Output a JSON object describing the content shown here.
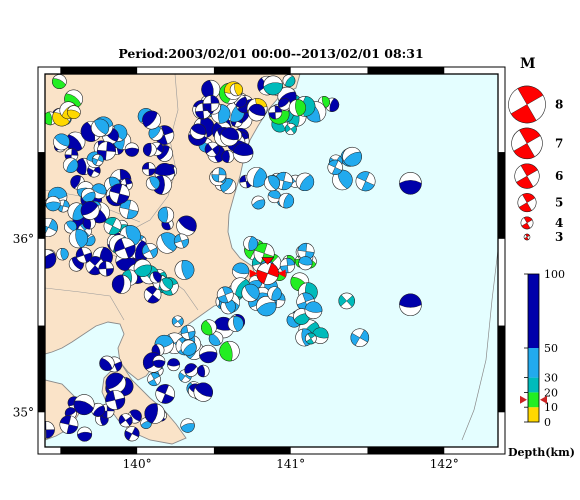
{
  "title": "Period:2003/02/01 00:00--2013/02/01 08:31",
  "map": {
    "lon_ticks": [
      {
        "value": 140,
        "label": "140°"
      },
      {
        "value": 141,
        "label": "141°"
      },
      {
        "value": 142,
        "label": "142°"
      }
    ],
    "lat_ticks": [
      {
        "value": 35,
        "label": "35°"
      },
      {
        "value": 36,
        "label": "36°"
      }
    ],
    "lon_range": [
      139.4,
      142.35
    ],
    "lat_range": [
      34.8,
      36.95
    ],
    "colors": {
      "land": "#fae3c8",
      "sea": "#e4feff",
      "coast": "#8a8a8a",
      "frame": "#000000"
    }
  },
  "magnitude_legend": {
    "title": "M",
    "items": [
      {
        "m": 8,
        "label": "8"
      },
      {
        "m": 7,
        "label": "7"
      },
      {
        "m": 6,
        "label": "6"
      },
      {
        "m": 5,
        "label": "5"
      },
      {
        "m": 4,
        "label": "4"
      },
      {
        "m": 3,
        "label": "3"
      }
    ],
    "color": "#ff0000"
  },
  "depth_scale": {
    "label": "Depth(km)",
    "ticks": [
      {
        "value": 0,
        "label": "0"
      },
      {
        "value": 10,
        "label": "10"
      },
      {
        "value": 20,
        "label": "20"
      },
      {
        "value": 30,
        "label": "30"
      },
      {
        "value": 50,
        "label": "50"
      },
      {
        "value": 100,
        "label": "100"
      }
    ],
    "bands": [
      {
        "from": 0,
        "to": 10,
        "color": "#ffd800"
      },
      {
        "from": 10,
        "to": 20,
        "color": "#22ee22"
      },
      {
        "from": 20,
        "to": 30,
        "color": "#00bbbb"
      },
      {
        "from": 30,
        "to": 50,
        "color": "#22aaee"
      },
      {
        "from": 50,
        "to": 100,
        "color": "#0000aa"
      }
    ],
    "marker_depth": 15,
    "marker_color": "#cc2222"
  },
  "highlight_event": {
    "lon": 140.85,
    "lat": 35.8,
    "color": "#ff0000"
  }
}
